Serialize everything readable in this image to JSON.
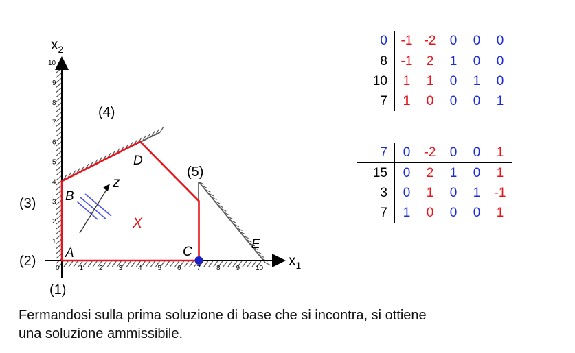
{
  "graph": {
    "axis_x_label": "x",
    "axis_x_sub": "1",
    "axis_y_label": "x",
    "axis_y_sub": "2",
    "x_ticks": [
      "0",
      "1",
      "2",
      "3",
      "4",
      "5",
      "6",
      "7",
      "8",
      "9",
      "10"
    ],
    "y_ticks": [
      "1",
      "2",
      "3",
      "4",
      "5",
      "6",
      "7",
      "8",
      "9",
      "10"
    ],
    "constraint_labels": [
      "(1)",
      "(2)",
      "(3)",
      "(4)",
      "(5)"
    ],
    "vertices": [
      {
        "label": "A",
        "x": 0,
        "y": 0
      },
      {
        "label": "B",
        "x": 0,
        "y": 4
      },
      {
        "label": "D",
        "x": 4,
        "y": 6
      },
      {
        "label": "C",
        "x": 7,
        "y": 0
      },
      {
        "label": "E",
        "x": 10,
        "y": 0
      }
    ],
    "feasible_region_label": "X",
    "objective_label": "z",
    "current_solution": {
      "x": 7,
      "y": 0
    },
    "colors": {
      "region": "#e8141b",
      "objective": "#4a55e6",
      "point": "#1a22c8",
      "axis": "#000000",
      "hatch": "#555555"
    }
  },
  "tableau1": {
    "header": {
      "rhs": "0",
      "cells": [
        "-1",
        "-2",
        "0",
        "0",
        "0"
      ],
      "rhs_color": "#1a2bd8",
      "cell_colors": [
        "#e8141b",
        "#e8141b",
        "#1a2bd8",
        "#1a2bd8",
        "#1a2bd8"
      ]
    },
    "rows": [
      {
        "rhs": "8",
        "cells": [
          "-1",
          "2",
          "1",
          "0",
          "0"
        ],
        "rhs_color": "#000000",
        "cell_colors": [
          "#e8141b",
          "#e8141b",
          "#1a2bd8",
          "#1a2bd8",
          "#1a2bd8"
        ]
      },
      {
        "rhs": "10",
        "cells": [
          "1",
          "1",
          "0",
          "1",
          "0"
        ],
        "rhs_color": "#000000",
        "cell_colors": [
          "#e8141b",
          "#e8141b",
          "#1a2bd8",
          "#1a2bd8",
          "#1a2bd8"
        ]
      },
      {
        "rhs": "7",
        "cells": [
          "1",
          "0",
          "0",
          "0",
          "1"
        ],
        "rhs_color": "#000000",
        "cell_colors": [
          "#e8141b",
          "#e8141b",
          "#1a2bd8",
          "#1a2bd8",
          "#1a2bd8"
        ],
        "pivot_index": 0
      }
    ]
  },
  "tableau2": {
    "header": {
      "rhs": "7",
      "cells": [
        "0",
        "-2",
        "0",
        "0",
        "1"
      ],
      "rhs_color": "#1a2bd8",
      "cell_colors": [
        "#1a2bd8",
        "#e8141b",
        "#1a2bd8",
        "#1a2bd8",
        "#e8141b"
      ]
    },
    "rows": [
      {
        "rhs": "15",
        "cells": [
          "0",
          "2",
          "1",
          "0",
          "1"
        ],
        "rhs_color": "#000000",
        "cell_colors": [
          "#1a2bd8",
          "#e8141b",
          "#1a2bd8",
          "#1a2bd8",
          "#e8141b"
        ]
      },
      {
        "rhs": "3",
        "cells": [
          "0",
          "1",
          "0",
          "1",
          "-1"
        ],
        "rhs_color": "#000000",
        "cell_colors": [
          "#1a2bd8",
          "#e8141b",
          "#1a2bd8",
          "#1a2bd8",
          "#e8141b"
        ]
      },
      {
        "rhs": "7",
        "cells": [
          "1",
          "0",
          "0",
          "0",
          "1"
        ],
        "rhs_color": "#000000",
        "cell_colors": [
          "#1a2bd8",
          "#e8141b",
          "#1a2bd8",
          "#1a2bd8",
          "#e8141b"
        ]
      }
    ]
  },
  "caption": {
    "line1": "Fermandosi sulla prima soluzione di base che si incontra, si ottiene",
    "line2": "una soluzione ammissibile."
  }
}
